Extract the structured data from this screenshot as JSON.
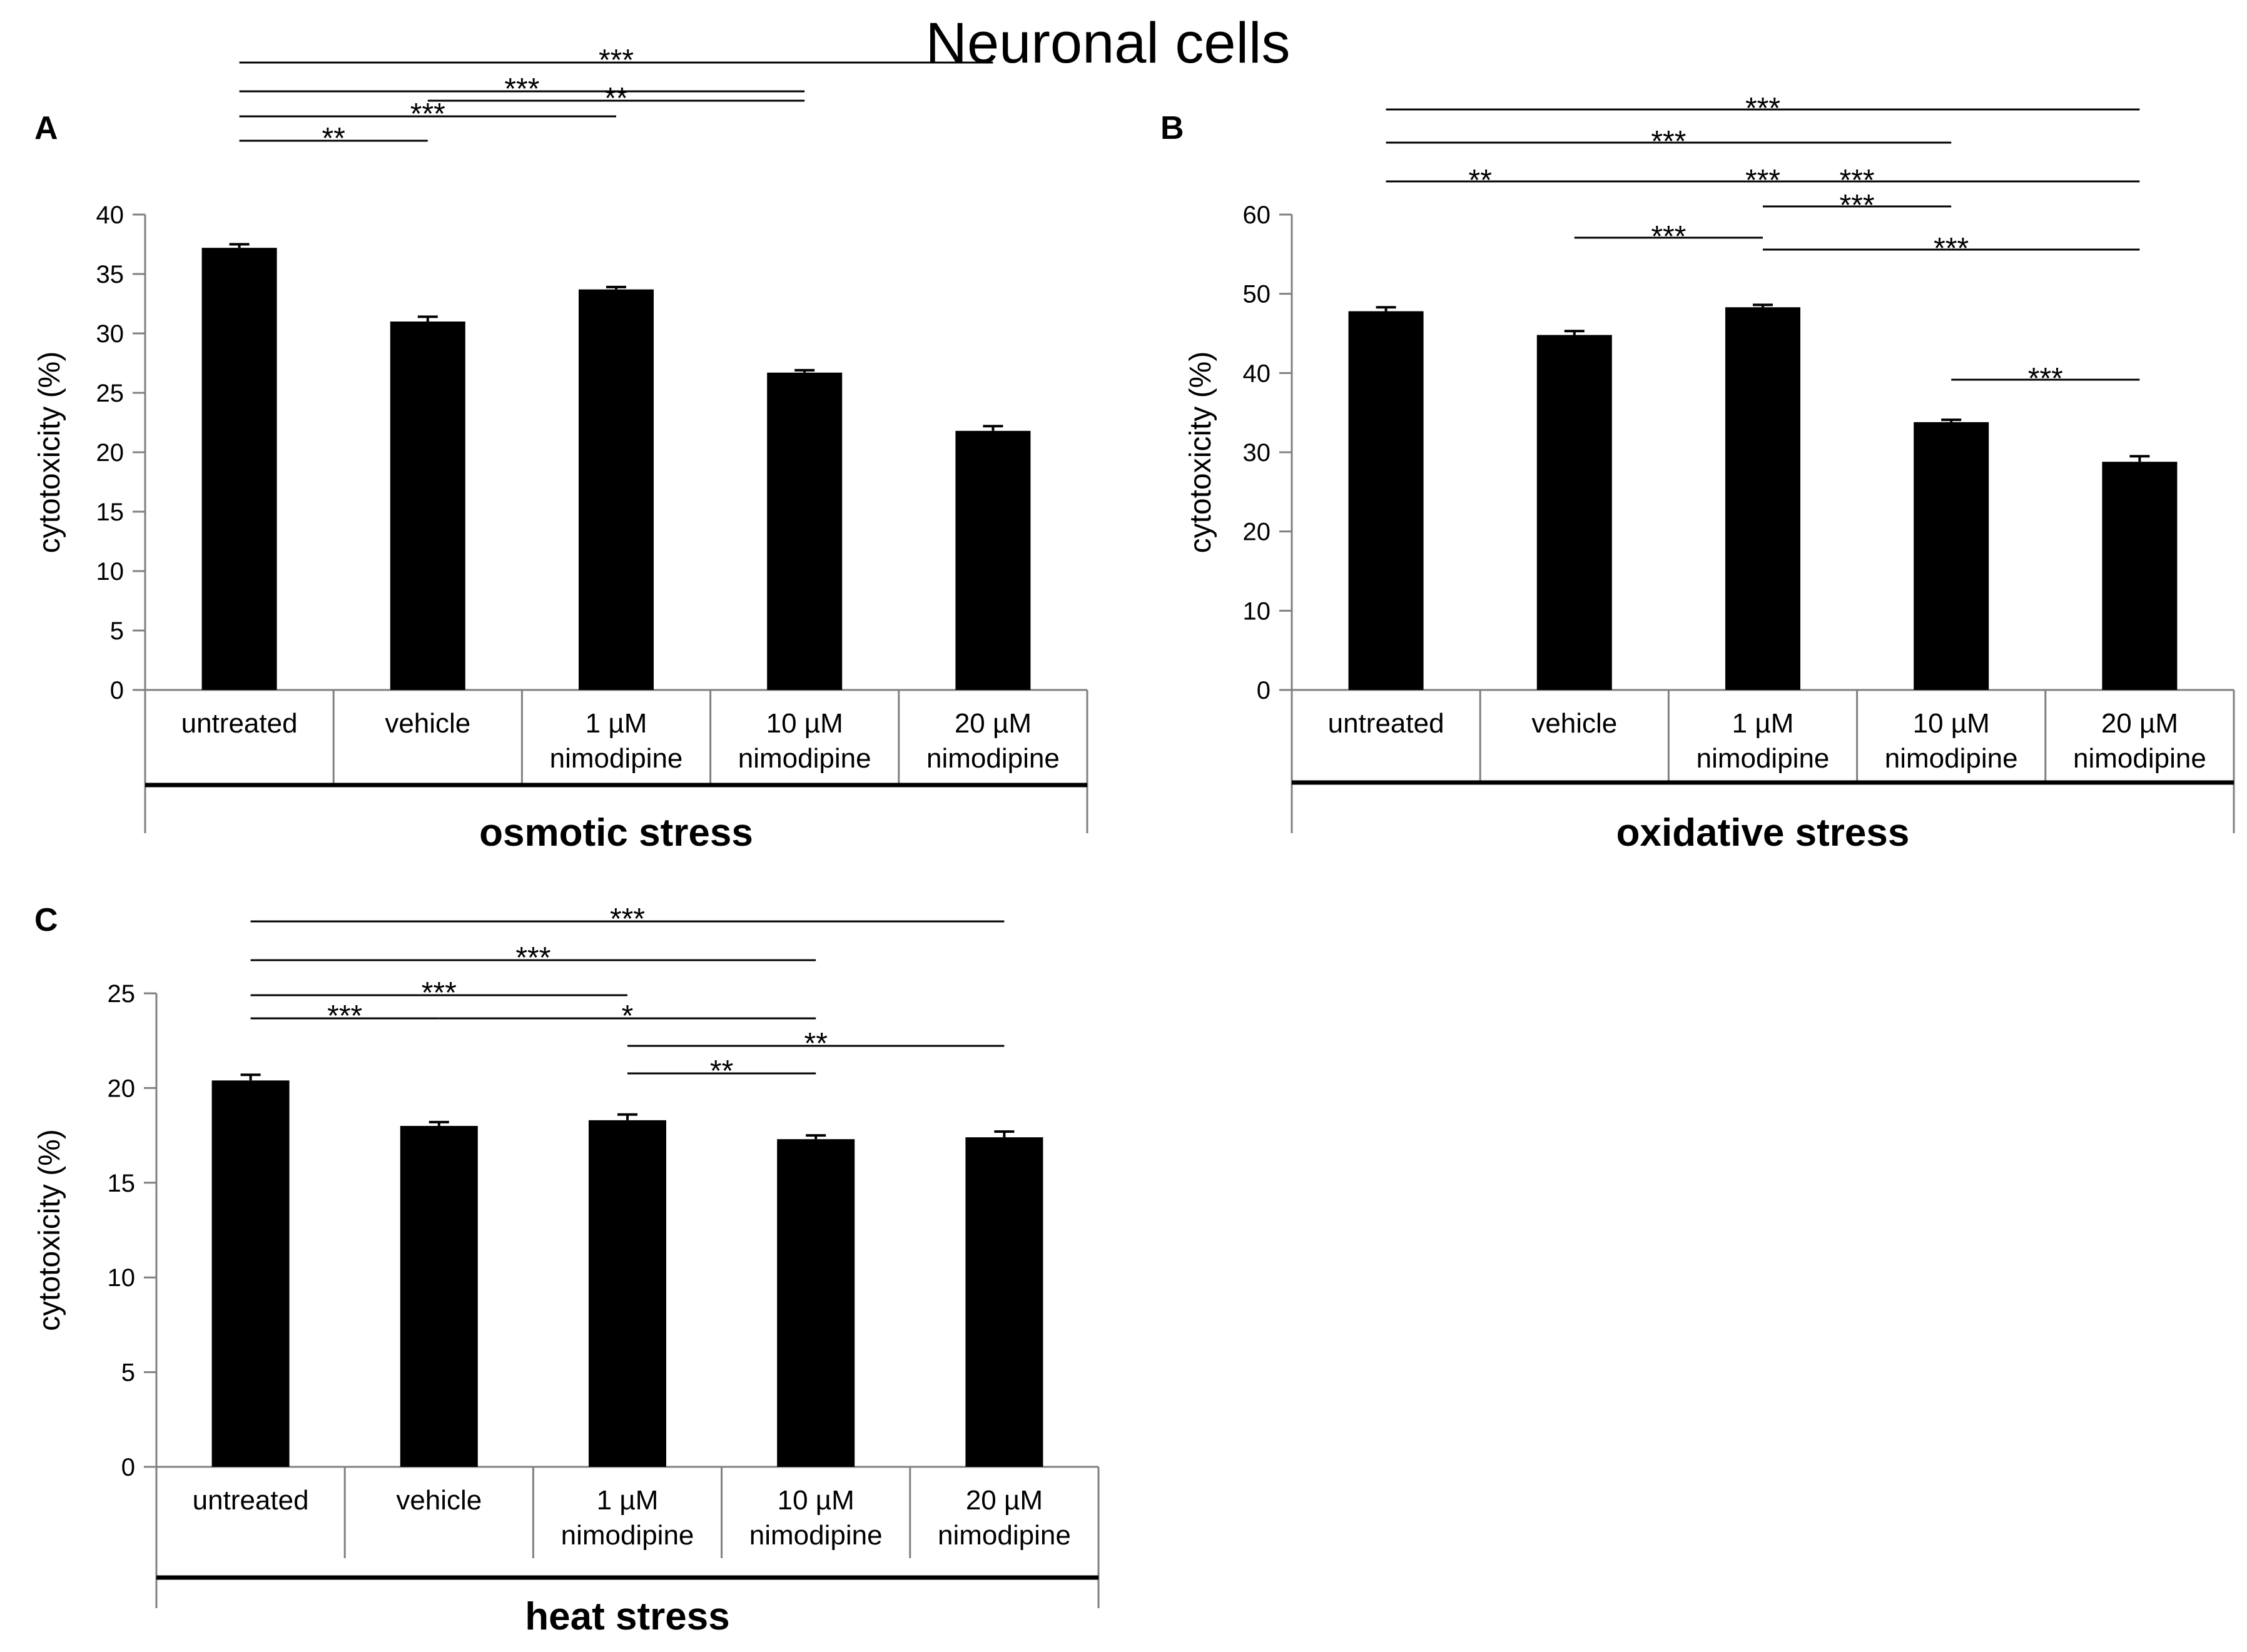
{
  "title": "Neuronal cells",
  "colors": {
    "bar": "#000000",
    "axis": "#808080",
    "text": "#000000",
    "background": "#ffffff"
  },
  "chart_data": [
    {
      "type": "bar",
      "panel": "A",
      "group_label": "osmotic stress",
      "ylabel": "cytotoxicity  (%)",
      "ylim": [
        0,
        40
      ],
      "yticks": [
        0,
        5,
        10,
        15,
        20,
        25,
        30,
        35,
        40
      ],
      "categories": [
        [
          "untreated"
        ],
        [
          "vehicle"
        ],
        [
          "1 µM",
          "nimodipine"
        ],
        [
          "10 µM",
          "nimodipine"
        ],
        [
          "20 µM",
          "nimodipine"
        ]
      ],
      "values": [
        37.2,
        31.0,
        33.7,
        26.7,
        21.8
      ],
      "errors": [
        0.3,
        0.4,
        0.2,
        0.2,
        0.4
      ],
      "significance": [
        {
          "from": 0,
          "to": 1,
          "label": "**"
        },
        {
          "from": 0,
          "to": 2,
          "label": "***"
        },
        {
          "from": 0,
          "to": 3,
          "label": "***"
        },
        {
          "from": 0,
          "to": 4,
          "label": "***"
        },
        {
          "from": 1,
          "to": 3,
          "label": "**"
        }
      ]
    },
    {
      "type": "bar",
      "panel": "B",
      "group_label": "oxidative stress",
      "ylabel": "cytotoxicity  (%)",
      "ylim": [
        0,
        60
      ],
      "yticks": [
        0,
        10,
        20,
        30,
        40,
        50,
        60
      ],
      "categories": [
        [
          "untreated"
        ],
        [
          "vehicle"
        ],
        [
          "1 µM",
          "nimodipine"
        ],
        [
          "10 µM",
          "nimodipine"
        ],
        [
          "20 µM",
          "nimodipine"
        ]
      ],
      "values": [
        47.8,
        44.8,
        48.3,
        33.8,
        28.8
      ],
      "errors": [
        0.5,
        0.5,
        0.3,
        0.3,
        0.7
      ],
      "significance": [
        {
          "from": 0,
          "to": 1,
          "label": "**"
        },
        {
          "from": 0,
          "to": 3,
          "label": "***"
        },
        {
          "from": 0,
          "to": 4,
          "label": "***"
        },
        {
          "from": 1,
          "to": 2,
          "label": "***"
        },
        {
          "from": 1,
          "to": 3,
          "label": "***"
        },
        {
          "from": 1,
          "to": 4,
          "label": "***"
        },
        {
          "from": 2,
          "to": 3,
          "label": "***"
        },
        {
          "from": 2,
          "to": 4,
          "label": "***"
        },
        {
          "from": 3,
          "to": 4,
          "label": "***"
        }
      ]
    },
    {
      "type": "bar",
      "panel": "C",
      "group_label": "heat stress",
      "ylabel": "cytotoxicity  (%)",
      "ylim": [
        0,
        25
      ],
      "yticks": [
        0,
        5,
        10,
        15,
        20,
        25
      ],
      "categories": [
        [
          "untreated"
        ],
        [
          "vehicle"
        ],
        [
          "1 µM",
          "nimodipine"
        ],
        [
          "10 µM",
          "nimodipine"
        ],
        [
          "20 µM",
          "nimodipine"
        ]
      ],
      "values": [
        20.4,
        18.0,
        18.3,
        17.3,
        17.4
      ],
      "errors": [
        0.3,
        0.2,
        0.3,
        0.2,
        0.3
      ],
      "significance": [
        {
          "from": 0,
          "to": 1,
          "label": "***"
        },
        {
          "from": 0,
          "to": 2,
          "label": "***"
        },
        {
          "from": 0,
          "to": 3,
          "label": "***"
        },
        {
          "from": 0,
          "to": 4,
          "label": "***"
        },
        {
          "from": 1,
          "to": 3,
          "label": "*"
        },
        {
          "from": 2,
          "to": 3,
          "label": "**"
        },
        {
          "from": 2,
          "to": 4,
          "label": "**"
        }
      ]
    }
  ]
}
